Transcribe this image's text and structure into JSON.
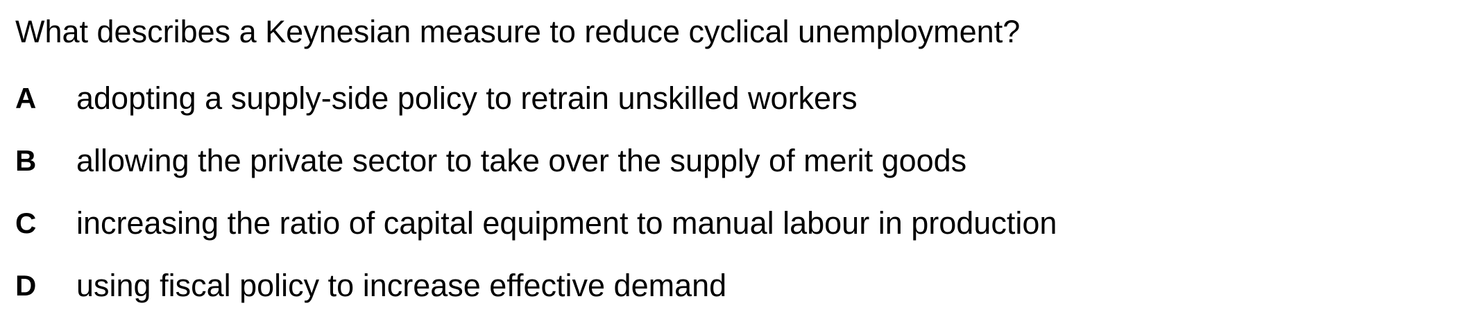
{
  "question": {
    "text": "What describes a Keynesian measure to reduce cyclical unemployment?"
  },
  "options": [
    {
      "letter": "A",
      "text": "adopting a supply-side policy to retrain unskilled workers"
    },
    {
      "letter": "B",
      "text": "allowing the private sector to take over the supply of merit goods"
    },
    {
      "letter": "C",
      "text": "increasing the ratio of capital equipment to manual labour in production"
    },
    {
      "letter": "D",
      "text": "using fiscal policy to increase effective demand"
    }
  ]
}
